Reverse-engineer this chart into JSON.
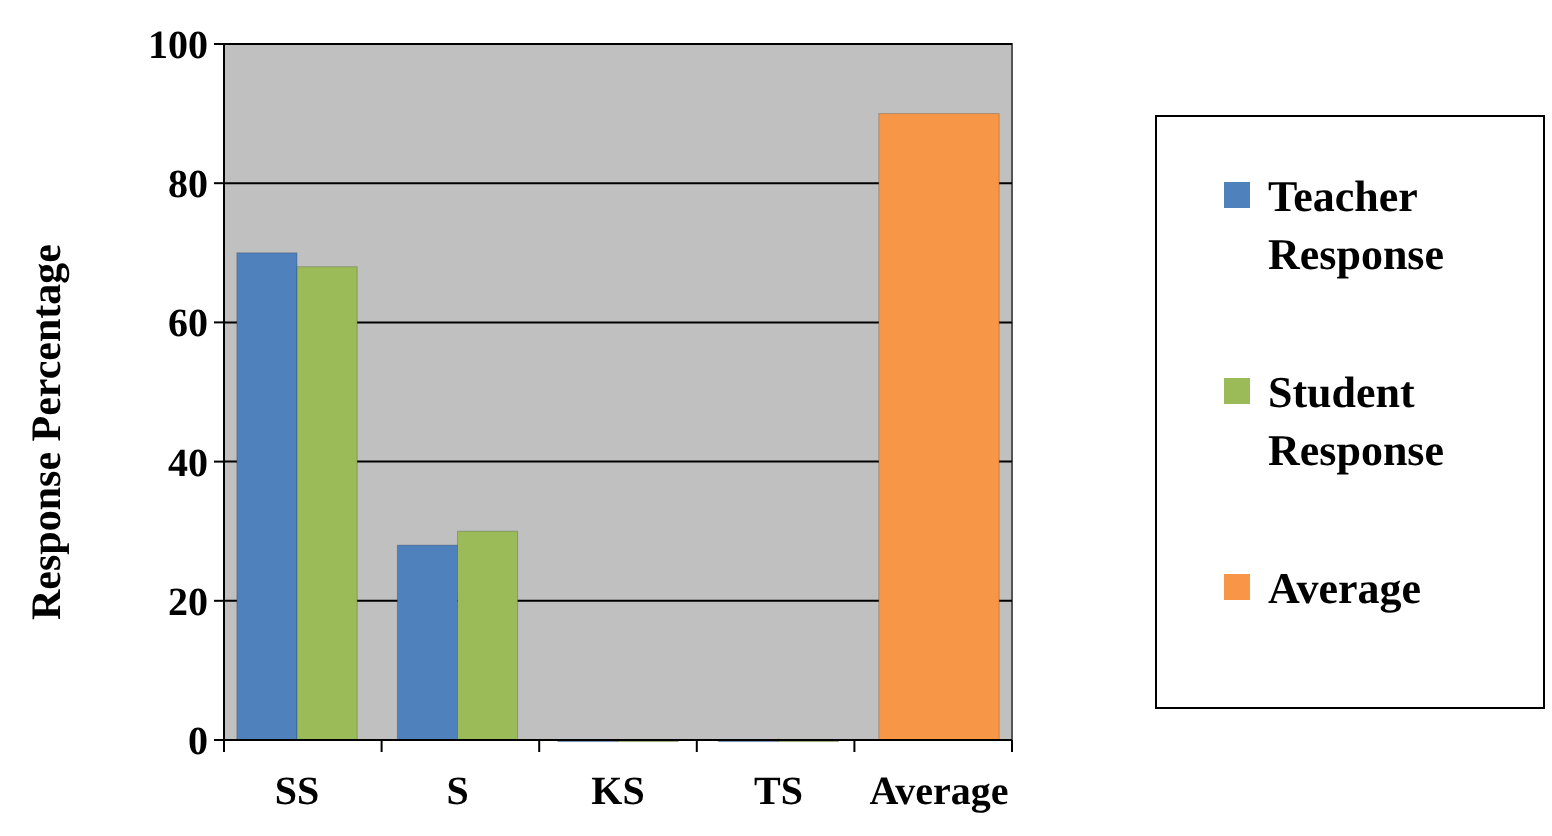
{
  "chart_data": {
    "type": "bar",
    "ylabel": "Response Percentage",
    "categories": [
      "SS",
      "S",
      "KS",
      "TS",
      "Average"
    ],
    "series": [
      {
        "name": "Teacher Response",
        "color": "#4f81bd",
        "values": [
          70,
          28,
          0,
          0,
          null
        ]
      },
      {
        "name": "Student Response",
        "color": "#9bbb59",
        "values": [
          68,
          30,
          0,
          0,
          null
        ]
      },
      {
        "name": "Average",
        "color": "#f79646",
        "values": [
          null,
          null,
          null,
          null,
          90
        ]
      }
    ],
    "ylim": [
      0,
      100
    ],
    "yticks": [
      0,
      20,
      40,
      60,
      80,
      100
    ],
    "grid": "y",
    "legend": "right"
  }
}
